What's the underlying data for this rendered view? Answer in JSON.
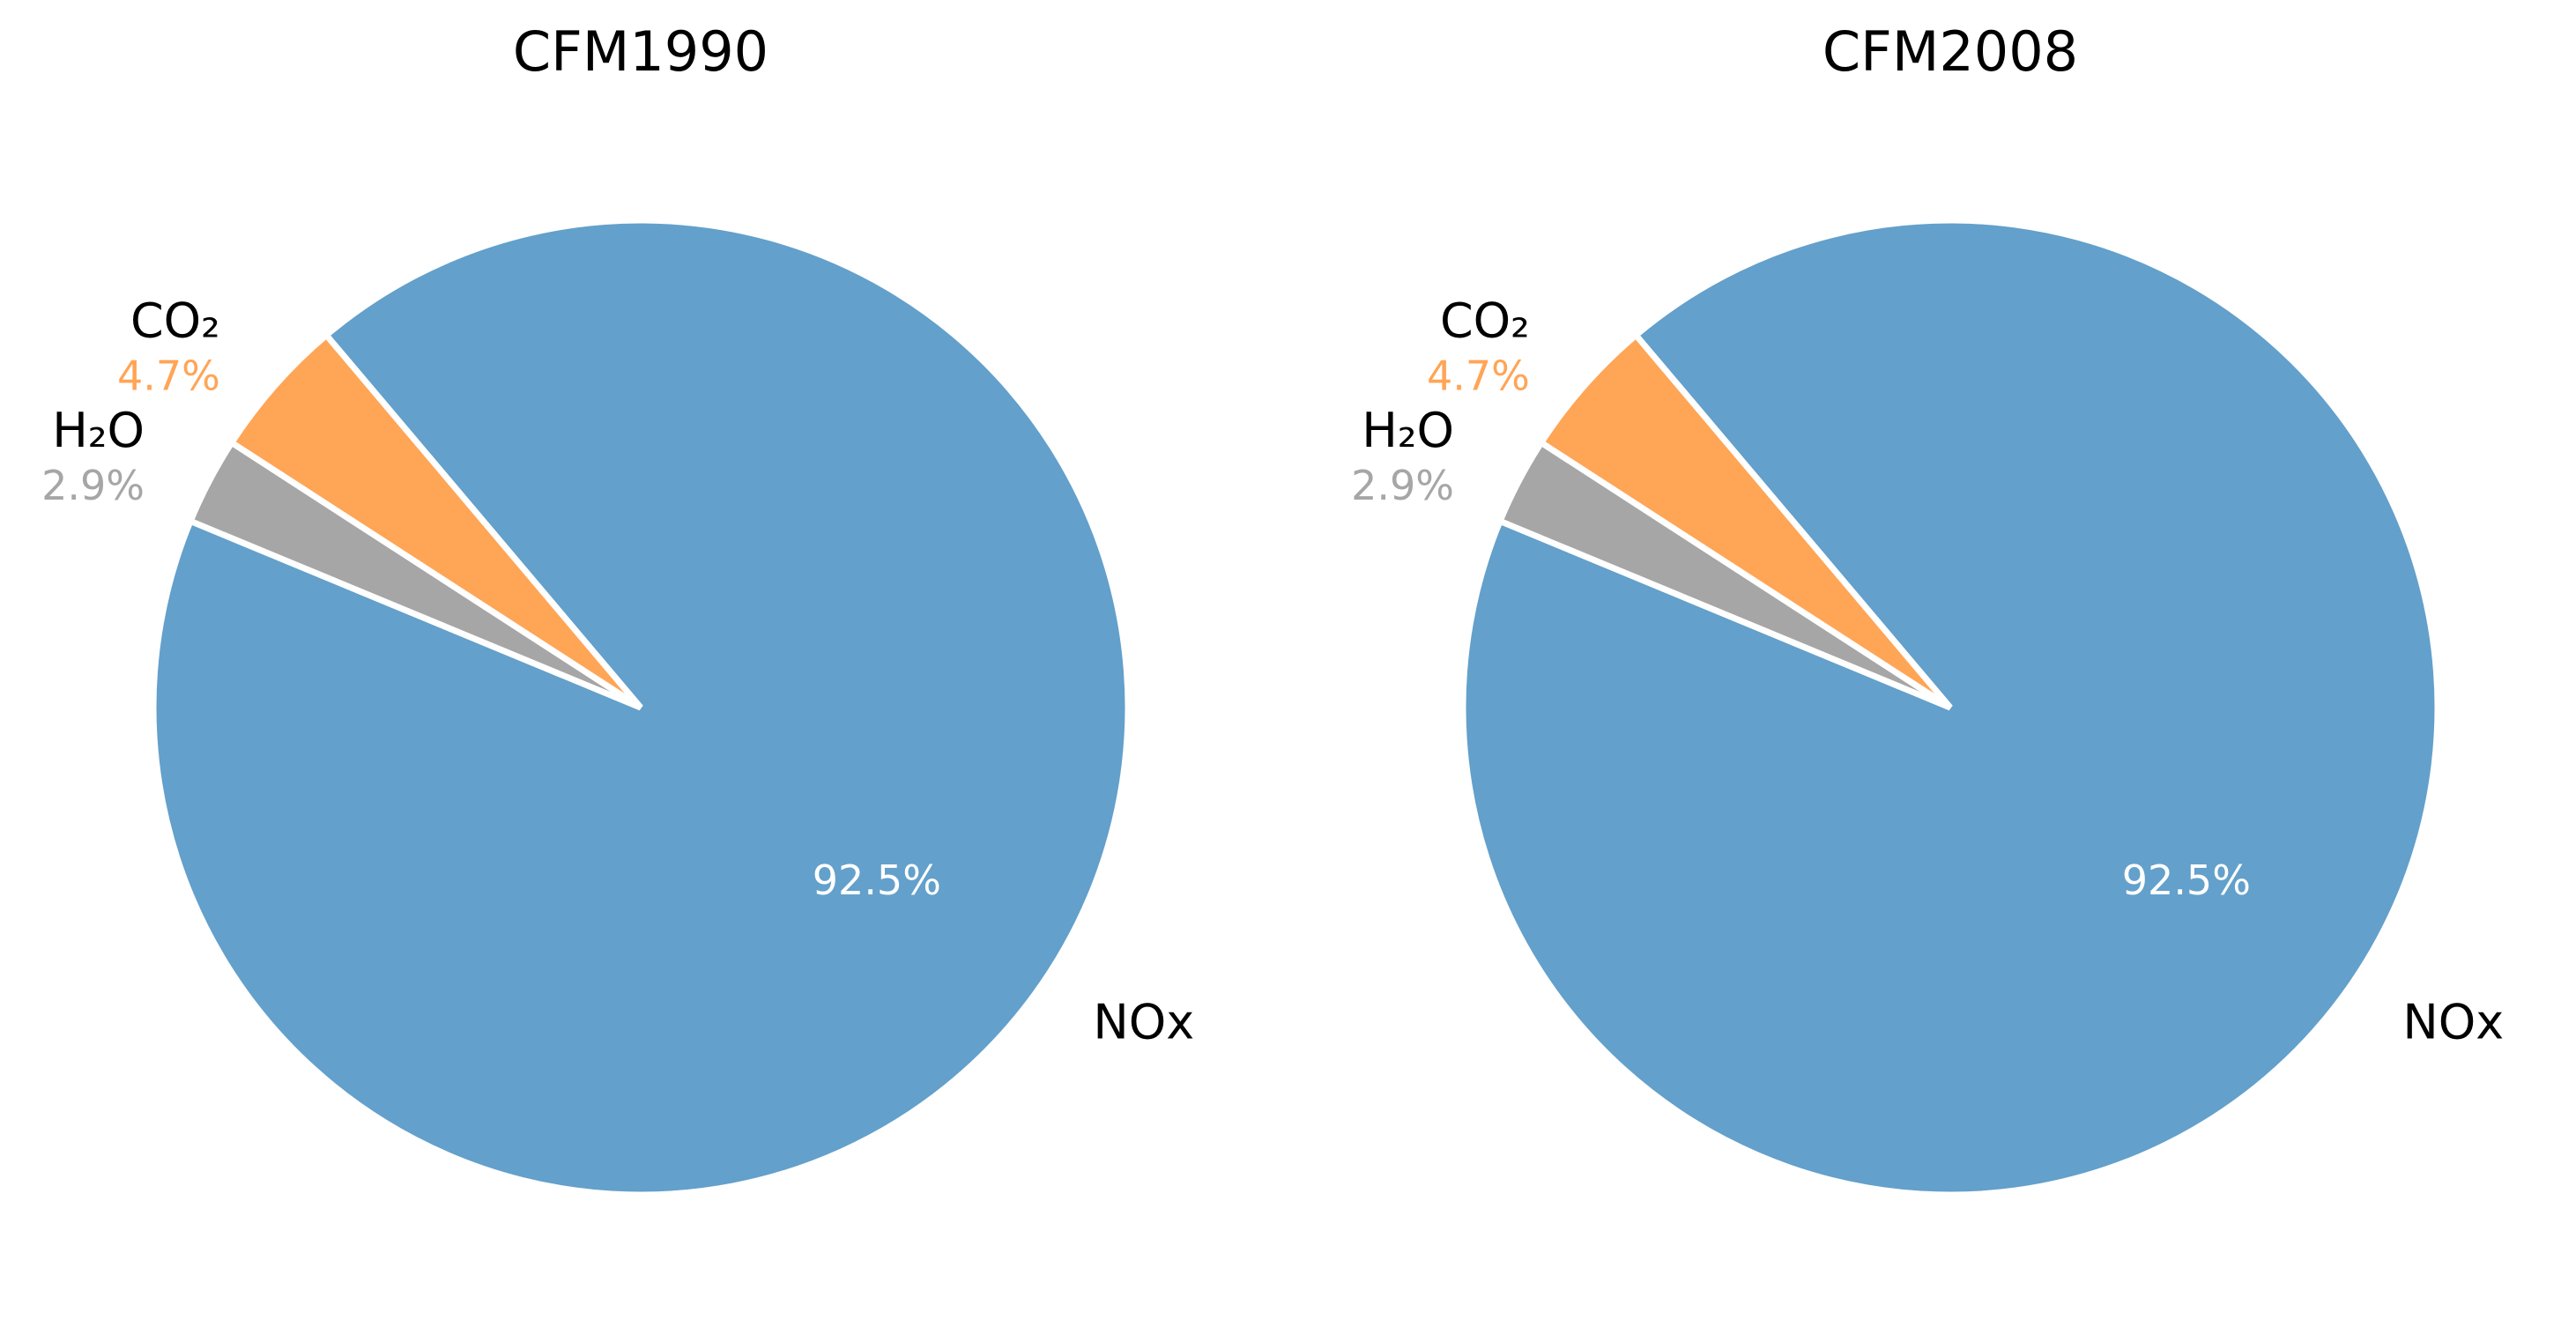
{
  "chart_data": [
    {
      "type": "pie",
      "title": "CFM1990",
      "categories": [
        "NOx",
        "CO₂",
        "H₂O"
      ],
      "values": [
        92.5,
        4.7,
        2.9
      ],
      "percent_labels": [
        "92.5%",
        "4.7%",
        "2.9%"
      ],
      "colors": [
        "#63a0cb",
        "#ffa556",
        "#a6a6a6"
      ],
      "percent_label_colors": [
        "#ffffff",
        "#ffa556",
        "#a6a6a6"
      ]
    },
    {
      "type": "pie",
      "title": "CFM2008",
      "categories": [
        "NOx",
        "CO₂",
        "H₂O"
      ],
      "values": [
        92.5,
        4.7,
        2.9
      ],
      "percent_labels": [
        "92.5%",
        "4.7%",
        "2.9%"
      ],
      "colors": [
        "#63a0cb",
        "#ffa556",
        "#a6a6a6"
      ],
      "percent_label_colors": [
        "#ffffff",
        "#ffa556",
        "#a6a6a6"
      ]
    }
  ]
}
